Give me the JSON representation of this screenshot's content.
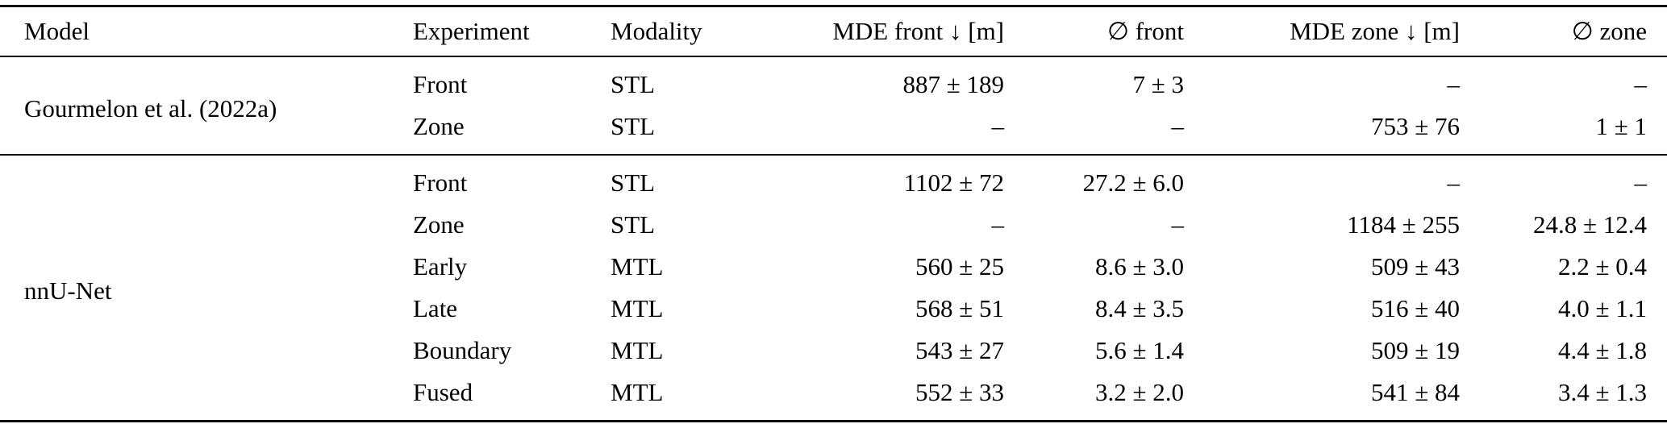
{
  "table": {
    "columns": [
      {
        "label": "Model",
        "align": "left"
      },
      {
        "label": "Experiment",
        "align": "left"
      },
      {
        "label": "Modality",
        "align": "left"
      },
      {
        "label": "MDE front ↓ [m]",
        "align": "right"
      },
      {
        "label": "∅ front",
        "align": "right"
      },
      {
        "label": "MDE zone ↓ [m]",
        "align": "right"
      },
      {
        "label": "∅ zone",
        "align": "right"
      }
    ],
    "groups": [
      {
        "model": "Gourmelon et al. (2022a)",
        "rows": [
          {
            "experiment": "Front",
            "modality": "STL",
            "mde_front": "887 ± 189",
            "avg_front": "7 ± 3",
            "mde_zone": "–",
            "avg_zone": "–"
          },
          {
            "experiment": "Zone",
            "modality": "STL",
            "mde_front": "–",
            "avg_front": "–",
            "mde_zone": "753 ± 76",
            "avg_zone": "1 ± 1"
          }
        ]
      },
      {
        "model": "nnU-Net",
        "rows": [
          {
            "experiment": "Front",
            "modality": "STL",
            "mde_front": "1102 ± 72",
            "avg_front": "27.2 ± 6.0",
            "mde_zone": "–",
            "avg_zone": "–"
          },
          {
            "experiment": "Zone",
            "modality": "STL",
            "mde_front": "–",
            "avg_front": "–",
            "mde_zone": "1184 ± 255",
            "avg_zone": "24.8 ± 12.4"
          },
          {
            "experiment": "Early",
            "modality": "MTL",
            "mde_front": "560 ± 25",
            "avg_front": "8.6 ± 3.0",
            "mde_zone": "509 ± 43",
            "avg_zone": "2.2 ± 0.4"
          },
          {
            "experiment": "Late",
            "modality": "MTL",
            "mde_front": "568 ± 51",
            "avg_front": "8.4 ± 3.5",
            "mde_zone": "516 ± 40",
            "avg_zone": "4.0 ± 1.1"
          },
          {
            "experiment": "Boundary",
            "modality": "MTL",
            "mde_front": "543 ± 27",
            "avg_front": "5.6 ± 1.4",
            "mde_zone": "509 ± 19",
            "avg_zone": "4.4 ± 1.8"
          },
          {
            "experiment": "Fused",
            "modality": "MTL",
            "mde_front": "552 ± 33",
            "avg_front": "3.2 ± 2.0",
            "mde_zone": "541 ± 84",
            "avg_zone": "3.4 ± 1.3"
          }
        ]
      }
    ]
  }
}
